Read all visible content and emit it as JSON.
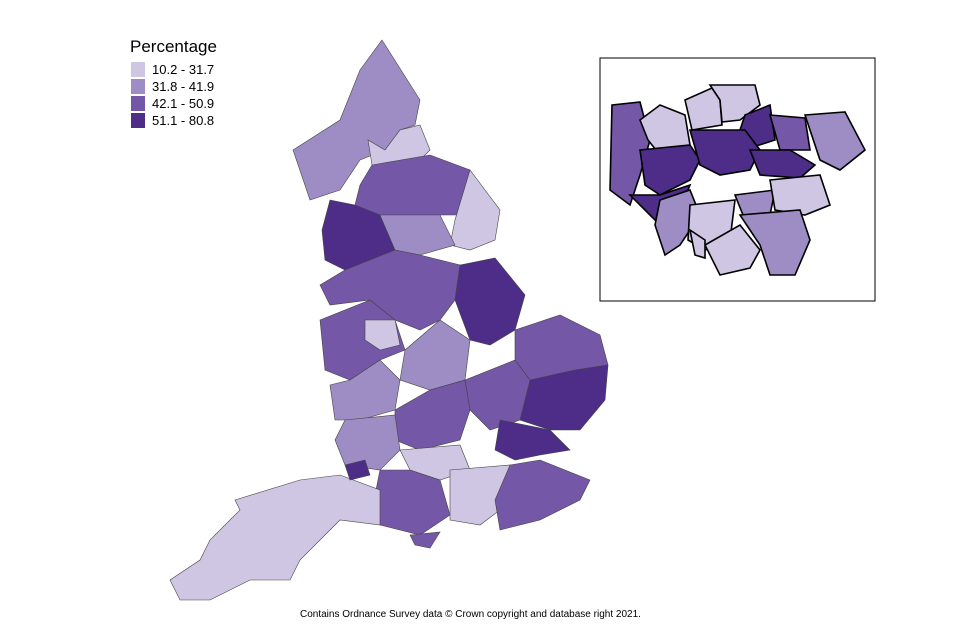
{
  "legend": {
    "title": "Percentage",
    "classes": [
      {
        "label": "10.2 - 31.7",
        "color": "#cfc6e4"
      },
      {
        "label": "31.8 - 41.9",
        "color": "#9e8dc5"
      },
      {
        "label": "42.1 - 50.9",
        "color": "#7457a6"
      },
      {
        "label": "51.1 - 80.8",
        "color": "#4d2d87"
      }
    ]
  },
  "footer": "Contains Ordnance Survey data © Crown copyright and database right 2021."
}
